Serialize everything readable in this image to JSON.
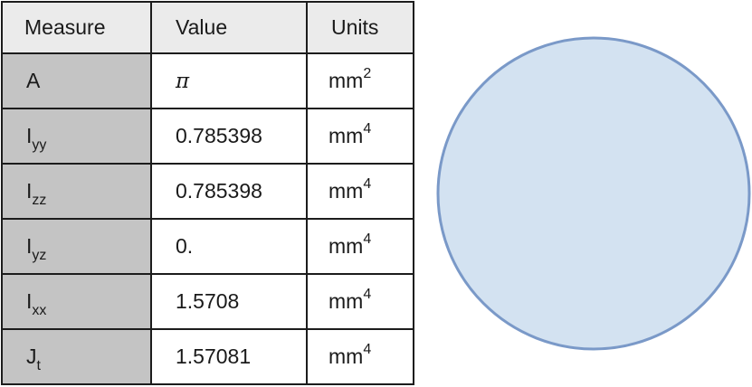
{
  "table": {
    "headers": {
      "measure": "Measure",
      "value": "Value",
      "units": "Units"
    },
    "rows": [
      {
        "symbol": "A",
        "subscript": "",
        "value": "π",
        "unit": "mm",
        "exponent": "2"
      },
      {
        "symbol": "I",
        "subscript": "yy",
        "value": "0.785398",
        "unit": "mm",
        "exponent": "4"
      },
      {
        "symbol": "I",
        "subscript": "zz",
        "value": "0.785398",
        "unit": "mm",
        "exponent": "4"
      },
      {
        "symbol": "I",
        "subscript": "yz",
        "value": "0.",
        "unit": "mm",
        "exponent": "4"
      },
      {
        "symbol": "I",
        "subscript": "xx",
        "value": "1.5708",
        "unit": "mm",
        "exponent": "4"
      },
      {
        "symbol": "J",
        "subscript": "t",
        "value": "1.57081",
        "unit": "mm",
        "exponent": "4"
      }
    ]
  },
  "figure": {
    "shape": "circle",
    "fill_color": "#d3e2f1",
    "stroke_color": "#7a99c8"
  },
  "colors": {
    "header_bg": "#ebebeb",
    "measure_col_bg": "#c4c4c4",
    "border": "#1c1c1c"
  }
}
